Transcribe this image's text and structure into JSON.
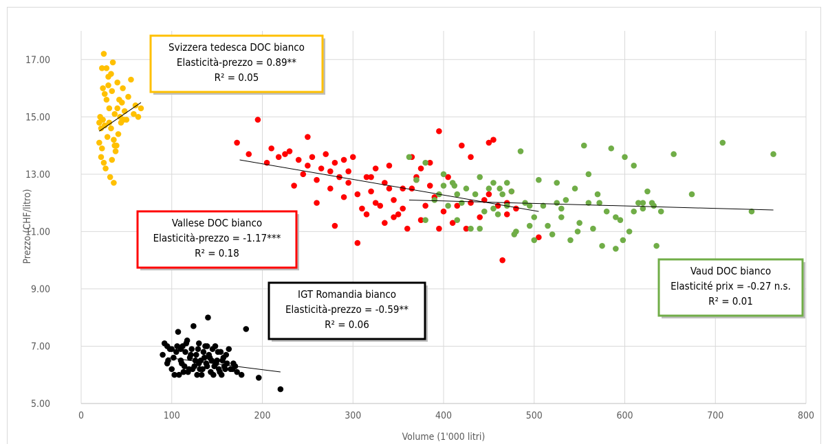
{
  "chart_data": {
    "type": "scatter",
    "title": "",
    "xlabel": "Volume (1'000 litri)",
    "ylabel": "Prezzo (CHF/litro)",
    "xlim": [
      0,
      800
    ],
    "ylim": [
      5.0,
      18.0
    ],
    "x_ticks": [
      "0",
      "100",
      "200",
      "300",
      "400",
      "500",
      "600",
      "700",
      "800"
    ],
    "y_ticks": [
      "5.00",
      "7.00",
      "9.00",
      "11.00",
      "13.00",
      "15.00",
      "17.00"
    ],
    "grid": true,
    "series": [
      {
        "name": "Svizzera tedesca DOC bianco",
        "color": "#ffc000",
        "annotation": [
          "Svizzera tedesca DOC bianco",
          "Elasticità-prezzo = 0.89**",
          "R² = 0.05"
        ],
        "trend": [
          [
            20,
            14.5
          ],
          [
            66,
            15.5
          ]
        ],
        "points": [
          [
            20,
            14.1
          ],
          [
            22,
            13.6
          ],
          [
            24,
            14.9
          ],
          [
            26,
            15.8
          ],
          [
            28,
            16.7
          ],
          [
            25,
            17.2
          ],
          [
            30,
            16.1
          ],
          [
            31,
            15.3
          ],
          [
            33,
            14.6
          ],
          [
            35,
            16.9
          ],
          [
            37,
            15.1
          ],
          [
            38,
            13.8
          ],
          [
            40,
            16.2
          ],
          [
            42,
            15.6
          ],
          [
            44,
            14.8
          ],
          [
            46,
            16.0
          ],
          [
            48,
            15.2
          ],
          [
            50,
            14.9
          ],
          [
            52,
            15.7
          ],
          [
            55,
            16.3
          ],
          [
            58,
            15.1
          ],
          [
            60,
            15.4
          ],
          [
            63,
            15.0
          ],
          [
            66,
            15.3
          ],
          [
            23,
            13.9
          ],
          [
            27,
            13.2
          ],
          [
            29,
            14.3
          ],
          [
            32,
            12.9
          ],
          [
            34,
            13.5
          ],
          [
            36,
            12.7
          ],
          [
            39,
            14.0
          ],
          [
            41,
            14.4
          ],
          [
            43,
            15.0
          ],
          [
            45,
            15.5
          ],
          [
            21,
            15.0
          ],
          [
            24,
            16.0
          ],
          [
            26,
            14.7
          ],
          [
            28,
            15.6
          ],
          [
            30,
            16.4
          ],
          [
            34,
            15.9
          ],
          [
            36,
            14.2
          ],
          [
            40,
            15.3
          ],
          [
            47,
            14.9
          ],
          [
            22,
            14.6
          ],
          [
            25,
            13.4
          ],
          [
            31,
            14.8
          ],
          [
            33,
            16.5
          ],
          [
            37,
            14.0
          ],
          [
            20,
            14.8
          ],
          [
            23,
            16.7
          ]
        ]
      },
      {
        "name": "Vallese DOC bianco",
        "color": "#ff0000",
        "annotation": [
          "Vallese DOC bianco",
          "Elasticità-prezzo = -1.17***",
          "R² = 0.18"
        ],
        "trend": [
          [
            175,
            13.5
          ],
          [
            505,
            11.7
          ]
        ],
        "points": [
          [
            172,
            14.1
          ],
          [
            185,
            13.7
          ],
          [
            195,
            14.9
          ],
          [
            205,
            13.4
          ],
          [
            210,
            13.9
          ],
          [
            218,
            13.6
          ],
          [
            225,
            13.7
          ],
          [
            230,
            13.8
          ],
          [
            240,
            13.5
          ],
          [
            245,
            13.0
          ],
          [
            250,
            14.3
          ],
          [
            255,
            13.6
          ],
          [
            260,
            12.8
          ],
          [
            265,
            13.2
          ],
          [
            270,
            13.7
          ],
          [
            275,
            12.5
          ],
          [
            280,
            13.4
          ],
          [
            285,
            12.9
          ],
          [
            290,
            13.5
          ],
          [
            295,
            13.1
          ],
          [
            300,
            13.6
          ],
          [
            305,
            12.3
          ],
          [
            310,
            11.8
          ],
          [
            315,
            12.9
          ],
          [
            320,
            12.4
          ],
          [
            325,
            13.2
          ],
          [
            330,
            11.9
          ],
          [
            335,
            12.7
          ],
          [
            340,
            13.3
          ],
          [
            345,
            12.1
          ],
          [
            350,
            11.6
          ],
          [
            355,
            12.5
          ],
          [
            360,
            11.1
          ],
          [
            365,
            13.6
          ],
          [
            370,
            12.8
          ],
          [
            375,
            13.2
          ],
          [
            380,
            11.9
          ],
          [
            385,
            13.4
          ],
          [
            390,
            12.2
          ],
          [
            395,
            14.5
          ],
          [
            400,
            11.7
          ],
          [
            405,
            12.9
          ],
          [
            410,
            11.3
          ],
          [
            415,
            11.9
          ],
          [
            420,
            14.0
          ],
          [
            425,
            11.1
          ],
          [
            430,
            13.6
          ],
          [
            440,
            11.5
          ],
          [
            445,
            12.1
          ],
          [
            450,
            12.3
          ],
          [
            455,
            14.2
          ],
          [
            460,
            11.9
          ],
          [
            465,
            10.0
          ],
          [
            470,
            12.0
          ],
          [
            475,
            12.4
          ],
          [
            480,
            11.8
          ],
          [
            505,
            10.8
          ],
          [
            235,
            12.6
          ],
          [
            260,
            12.0
          ],
          [
            280,
            11.2
          ],
          [
            290,
            12.2
          ],
          [
            305,
            10.6
          ],
          [
            315,
            11.6
          ],
          [
            325,
            12.0
          ],
          [
            335,
            11.3
          ],
          [
            345,
            11.5
          ],
          [
            355,
            11.8
          ],
          [
            365,
            12.5
          ],
          [
            375,
            11.4
          ],
          [
            385,
            12.6
          ],
          [
            395,
            11.1
          ],
          [
            275,
            13.1
          ],
          [
            295,
            12.7
          ],
          [
            320,
            12.9
          ],
          [
            340,
            12.5
          ],
          [
            370,
            12.9
          ],
          [
            430,
            12.0
          ],
          [
            450,
            14.1
          ],
          [
            470,
            11.6
          ],
          [
            250,
            13.3
          ]
        ]
      },
      {
        "name": "Vaud DOC bianco",
        "color": "#70ad47",
        "annotation": [
          "Vaud DOC bianco",
          "Elasticité prix = -0.27 n.s.",
          "R² = 0.01"
        ],
        "trend": [
          [
            362,
            12.1
          ],
          [
            764,
            11.75
          ]
        ],
        "points": [
          [
            362,
            13.6
          ],
          [
            370,
            12.8
          ],
          [
            380,
            13.4
          ],
          [
            390,
            12.1
          ],
          [
            395,
            12.3
          ],
          [
            400,
            12.6
          ],
          [
            405,
            11.9
          ],
          [
            410,
            12.7
          ],
          [
            415,
            11.4
          ],
          [
            420,
            12.0
          ],
          [
            425,
            12.5
          ],
          [
            430,
            11.1
          ],
          [
            435,
            12.3
          ],
          [
            440,
            12.9
          ],
          [
            445,
            11.7
          ],
          [
            450,
            12.5
          ],
          [
            455,
            12.7
          ],
          [
            460,
            11.6
          ],
          [
            465,
            12.3
          ],
          [
            470,
            11.9
          ],
          [
            475,
            12.4
          ],
          [
            480,
            11.0
          ],
          [
            485,
            13.8
          ],
          [
            490,
            12.0
          ],
          [
            495,
            11.2
          ],
          [
            500,
            11.5
          ],
          [
            505,
            12.8
          ],
          [
            510,
            11.9
          ],
          [
            515,
            11.2
          ],
          [
            520,
            10.9
          ],
          [
            525,
            12.7
          ],
          [
            530,
            11.5
          ],
          [
            535,
            12.1
          ],
          [
            540,
            10.7
          ],
          [
            545,
            12.5
          ],
          [
            550,
            11.3
          ],
          [
            555,
            14.0
          ],
          [
            560,
            12.0
          ],
          [
            565,
            11.1
          ],
          [
            570,
            12.3
          ],
          [
            575,
            10.5
          ],
          [
            580,
            11.7
          ],
          [
            585,
            13.9
          ],
          [
            590,
            10.4
          ],
          [
            595,
            11.4
          ],
          [
            600,
            13.6
          ],
          [
            605,
            11.0
          ],
          [
            610,
            13.3
          ],
          [
            615,
            12.0
          ],
          [
            620,
            11.8
          ],
          [
            625,
            12.4
          ],
          [
            630,
            12.0
          ],
          [
            635,
            10.5
          ],
          [
            640,
            11.7
          ],
          [
            654,
            13.7
          ],
          [
            674,
            12.3
          ],
          [
            708,
            14.1
          ],
          [
            740,
            11.7
          ],
          [
            764,
            13.7
          ],
          [
            598,
            10.7
          ],
          [
            572,
            12.0
          ],
          [
            530,
            11.8
          ],
          [
            500,
            10.7
          ],
          [
            470,
            12.7
          ],
          [
            455,
            11.8
          ],
          [
            440,
            11.1
          ],
          [
            415,
            12.3
          ],
          [
            400,
            13.0
          ],
          [
            380,
            11.4
          ],
          [
            412,
            12.6
          ],
          [
            495,
            11.9
          ],
          [
            525,
            12.0
          ],
          [
            548,
            11.0
          ],
          [
            560,
            13.0
          ],
          [
            590,
            11.5
          ],
          [
            610,
            11.7
          ],
          [
            620,
            12.0
          ],
          [
            632,
            11.9
          ],
          [
            478,
            10.9
          ],
          [
            462,
            12.5
          ]
        ]
      },
      {
        "name": "IGT Romandia bianco",
        "color": "#000000",
        "annotation": [
          "IGT Romandia bianco",
          "Elasticità-prezzo = -0.59**",
          "R² = 0.06"
        ],
        "trend": [
          [
            95,
            6.6
          ],
          [
            220,
            6.1
          ]
        ],
        "points": [
          [
            90,
            6.7
          ],
          [
            92,
            7.1
          ],
          [
            95,
            6.4
          ],
          [
            98,
            6.9
          ],
          [
            100,
            6.2
          ],
          [
            102,
            6.6
          ],
          [
            105,
            6.8
          ],
          [
            107,
            7.5
          ],
          [
            108,
            6.0
          ],
          [
            110,
            6.5
          ],
          [
            112,
            7.0
          ],
          [
            114,
            6.3
          ],
          [
            115,
            6.8
          ],
          [
            117,
            7.2
          ],
          [
            118,
            6.1
          ],
          [
            120,
            6.6
          ],
          [
            122,
            6.9
          ],
          [
            124,
            7.7
          ],
          [
            125,
            6.3
          ],
          [
            127,
            6.7
          ],
          [
            128,
            6.0
          ],
          [
            130,
            7.1
          ],
          [
            132,
            6.5
          ],
          [
            134,
            6.2
          ],
          [
            135,
            6.8
          ],
          [
            137,
            7.0
          ],
          [
            138,
            6.4
          ],
          [
            140,
            8.0
          ],
          [
            142,
            6.6
          ],
          [
            143,
            6.1
          ],
          [
            145,
            6.9
          ],
          [
            147,
            6.3
          ],
          [
            148,
            7.0
          ],
          [
            150,
            6.5
          ],
          [
            152,
            6.2
          ],
          [
            154,
            6.8
          ],
          [
            155,
            6.0
          ],
          [
            157,
            6.6
          ],
          [
            158,
            6.3
          ],
          [
            160,
            6.7
          ],
          [
            163,
            6.9
          ],
          [
            165,
            6.2
          ],
          [
            168,
            6.4
          ],
          [
            172,
            6.1
          ],
          [
            177,
            6.0
          ],
          [
            182,
            7.6
          ],
          [
            196,
            5.9
          ],
          [
            220,
            5.5
          ],
          [
            95,
            7.0
          ],
          [
            100,
            6.9
          ],
          [
            103,
            6.0
          ],
          [
            106,
            7.0
          ],
          [
            111,
            6.4
          ],
          [
            113,
            6.1
          ],
          [
            116,
            7.1
          ],
          [
            119,
            6.2
          ],
          [
            121,
            6.7
          ],
          [
            126,
            6.5
          ],
          [
            129,
            6.9
          ],
          [
            131,
            6.2
          ],
          [
            133,
            6.0
          ],
          [
            136,
            6.6
          ],
          [
            139,
            6.3
          ],
          [
            141,
            6.7
          ],
          [
            144,
            6.5
          ],
          [
            146,
            6.0
          ],
          [
            149,
            6.4
          ],
          [
            151,
            6.8
          ],
          [
            153,
            6.1
          ],
          [
            156,
            6.5
          ],
          [
            159,
            6.2
          ],
          [
            161,
            6.4
          ],
          [
            167,
            6.2
          ],
          [
            170,
            6.3
          ],
          [
            110,
            6.9
          ],
          [
            123,
            6.2
          ],
          [
            130,
            6.4
          ],
          [
            139,
            7.0
          ],
          [
            96,
            6.5
          ]
        ]
      }
    ]
  }
}
